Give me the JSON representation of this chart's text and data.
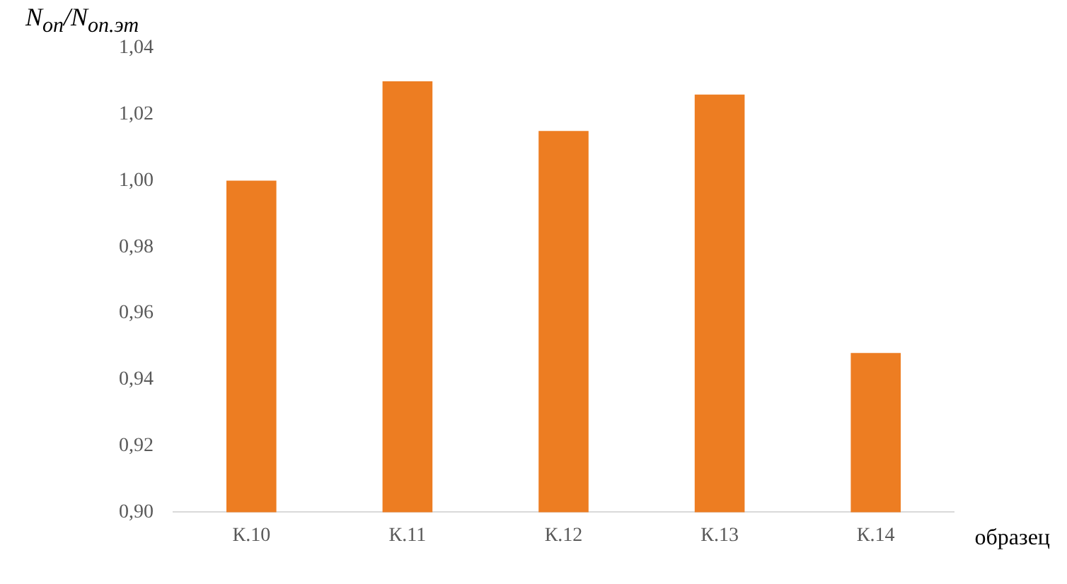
{
  "chart_data": {
    "type": "bar",
    "ylabel": "N$_{оп}$/N$_{оп.эт}$",
    "xlabel": "образец",
    "categories": [
      "К.10",
      "К.11",
      "К.12",
      "К.13",
      "К.14"
    ],
    "values": [
      1.0,
      1.03,
      1.015,
      1.026,
      0.948
    ],
    "color": "#ed7d22",
    "ylim": [
      0.9,
      1.04
    ],
    "yticks": [
      {
        "value": 0.9,
        "label": "0,90"
      },
      {
        "value": 0.92,
        "label": "0,92"
      },
      {
        "value": 0.94,
        "label": "0,94"
      },
      {
        "value": 0.96,
        "label": "0,96"
      },
      {
        "value": 0.98,
        "label": "0,98"
      },
      {
        "value": 1.0,
        "label": "1,00"
      },
      {
        "value": 1.02,
        "label": "1,02"
      },
      {
        "value": 1.04,
        "label": "1,04"
      }
    ],
    "grid": false,
    "legend": false
  }
}
